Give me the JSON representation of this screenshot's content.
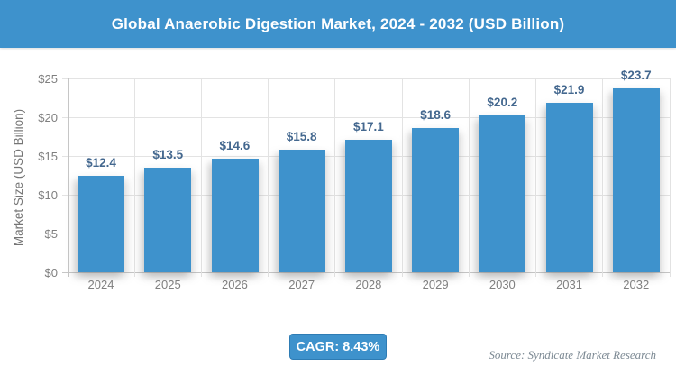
{
  "header": {
    "title": "Global Anaerobic Digestion Market, 2024 - 2032 (USD Billion)"
  },
  "chart_data": {
    "type": "bar",
    "title": "Global Anaerobic Digestion Market, 2024 - 2032 (USD Billion)",
    "categories": [
      "2024",
      "2025",
      "2026",
      "2027",
      "2028",
      "2029",
      "2030",
      "2031",
      "2032"
    ],
    "values": [
      12.4,
      13.5,
      14.6,
      15.8,
      17.1,
      18.6,
      20.2,
      21.9,
      23.7
    ],
    "value_labels": [
      "$12.4",
      "$13.5",
      "$14.6",
      "$15.8",
      "$17.1",
      "$18.6",
      "$20.2",
      "$21.9",
      "$23.7"
    ],
    "xlabel": "",
    "ylabel": "Market Size (USD Billion)",
    "ylim": [
      0,
      25
    ],
    "ytick_step": 5,
    "ytick_labels": [
      "$0",
      "$5",
      "$10",
      "$15",
      "$20",
      "$25"
    ],
    "grid": true,
    "legend": "none"
  },
  "footer": {
    "cagr_label": "CAGR: 8.43%",
    "source": "Source: Syndicate Market Research"
  },
  "colors": {
    "accent_blue": "#3e92cc",
    "value_label": "#44688f",
    "axis_text": "#7f7f7f",
    "grid_line": "#e3e3e3",
    "axis_line": "#c6c6c6",
    "source_text": "#7d8a94"
  }
}
